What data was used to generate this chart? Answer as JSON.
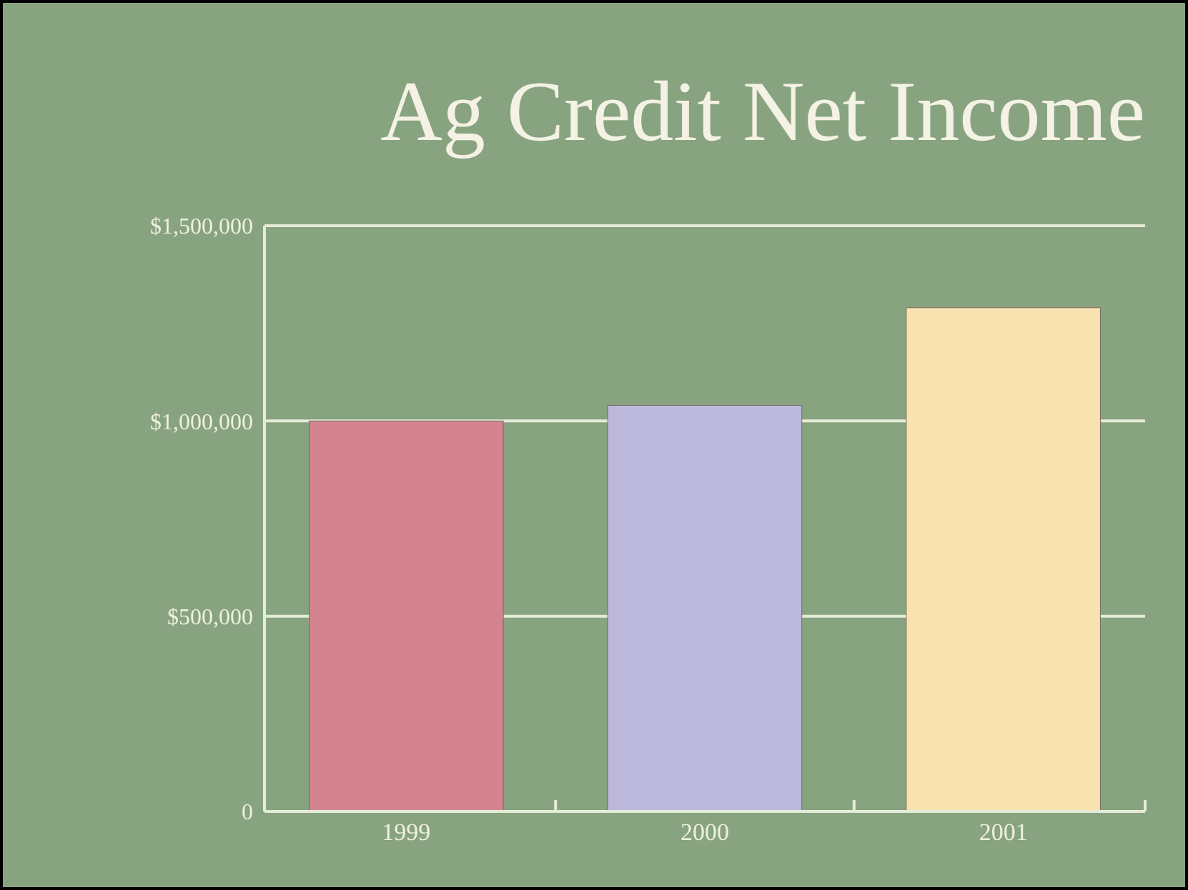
{
  "chart_data": {
    "type": "bar",
    "title": "Ag Credit Net Income",
    "categories": [
      "1999",
      "2000",
      "2001"
    ],
    "values": [
      1000000,
      1040000,
      1290000
    ],
    "colors": [
      "#d4848f",
      "#bcb8dc",
      "#f8e2b0"
    ],
    "ylim": [
      0,
      1500000
    ],
    "yticks": [
      {
        "value": 0,
        "label": "0"
      },
      {
        "value": 500000,
        "label": "$500,000"
      },
      {
        "value": 1000000,
        "label": "$1,000,000"
      },
      {
        "value": 1500000,
        "label": "$1,500,000"
      }
    ],
    "grid": "y"
  }
}
